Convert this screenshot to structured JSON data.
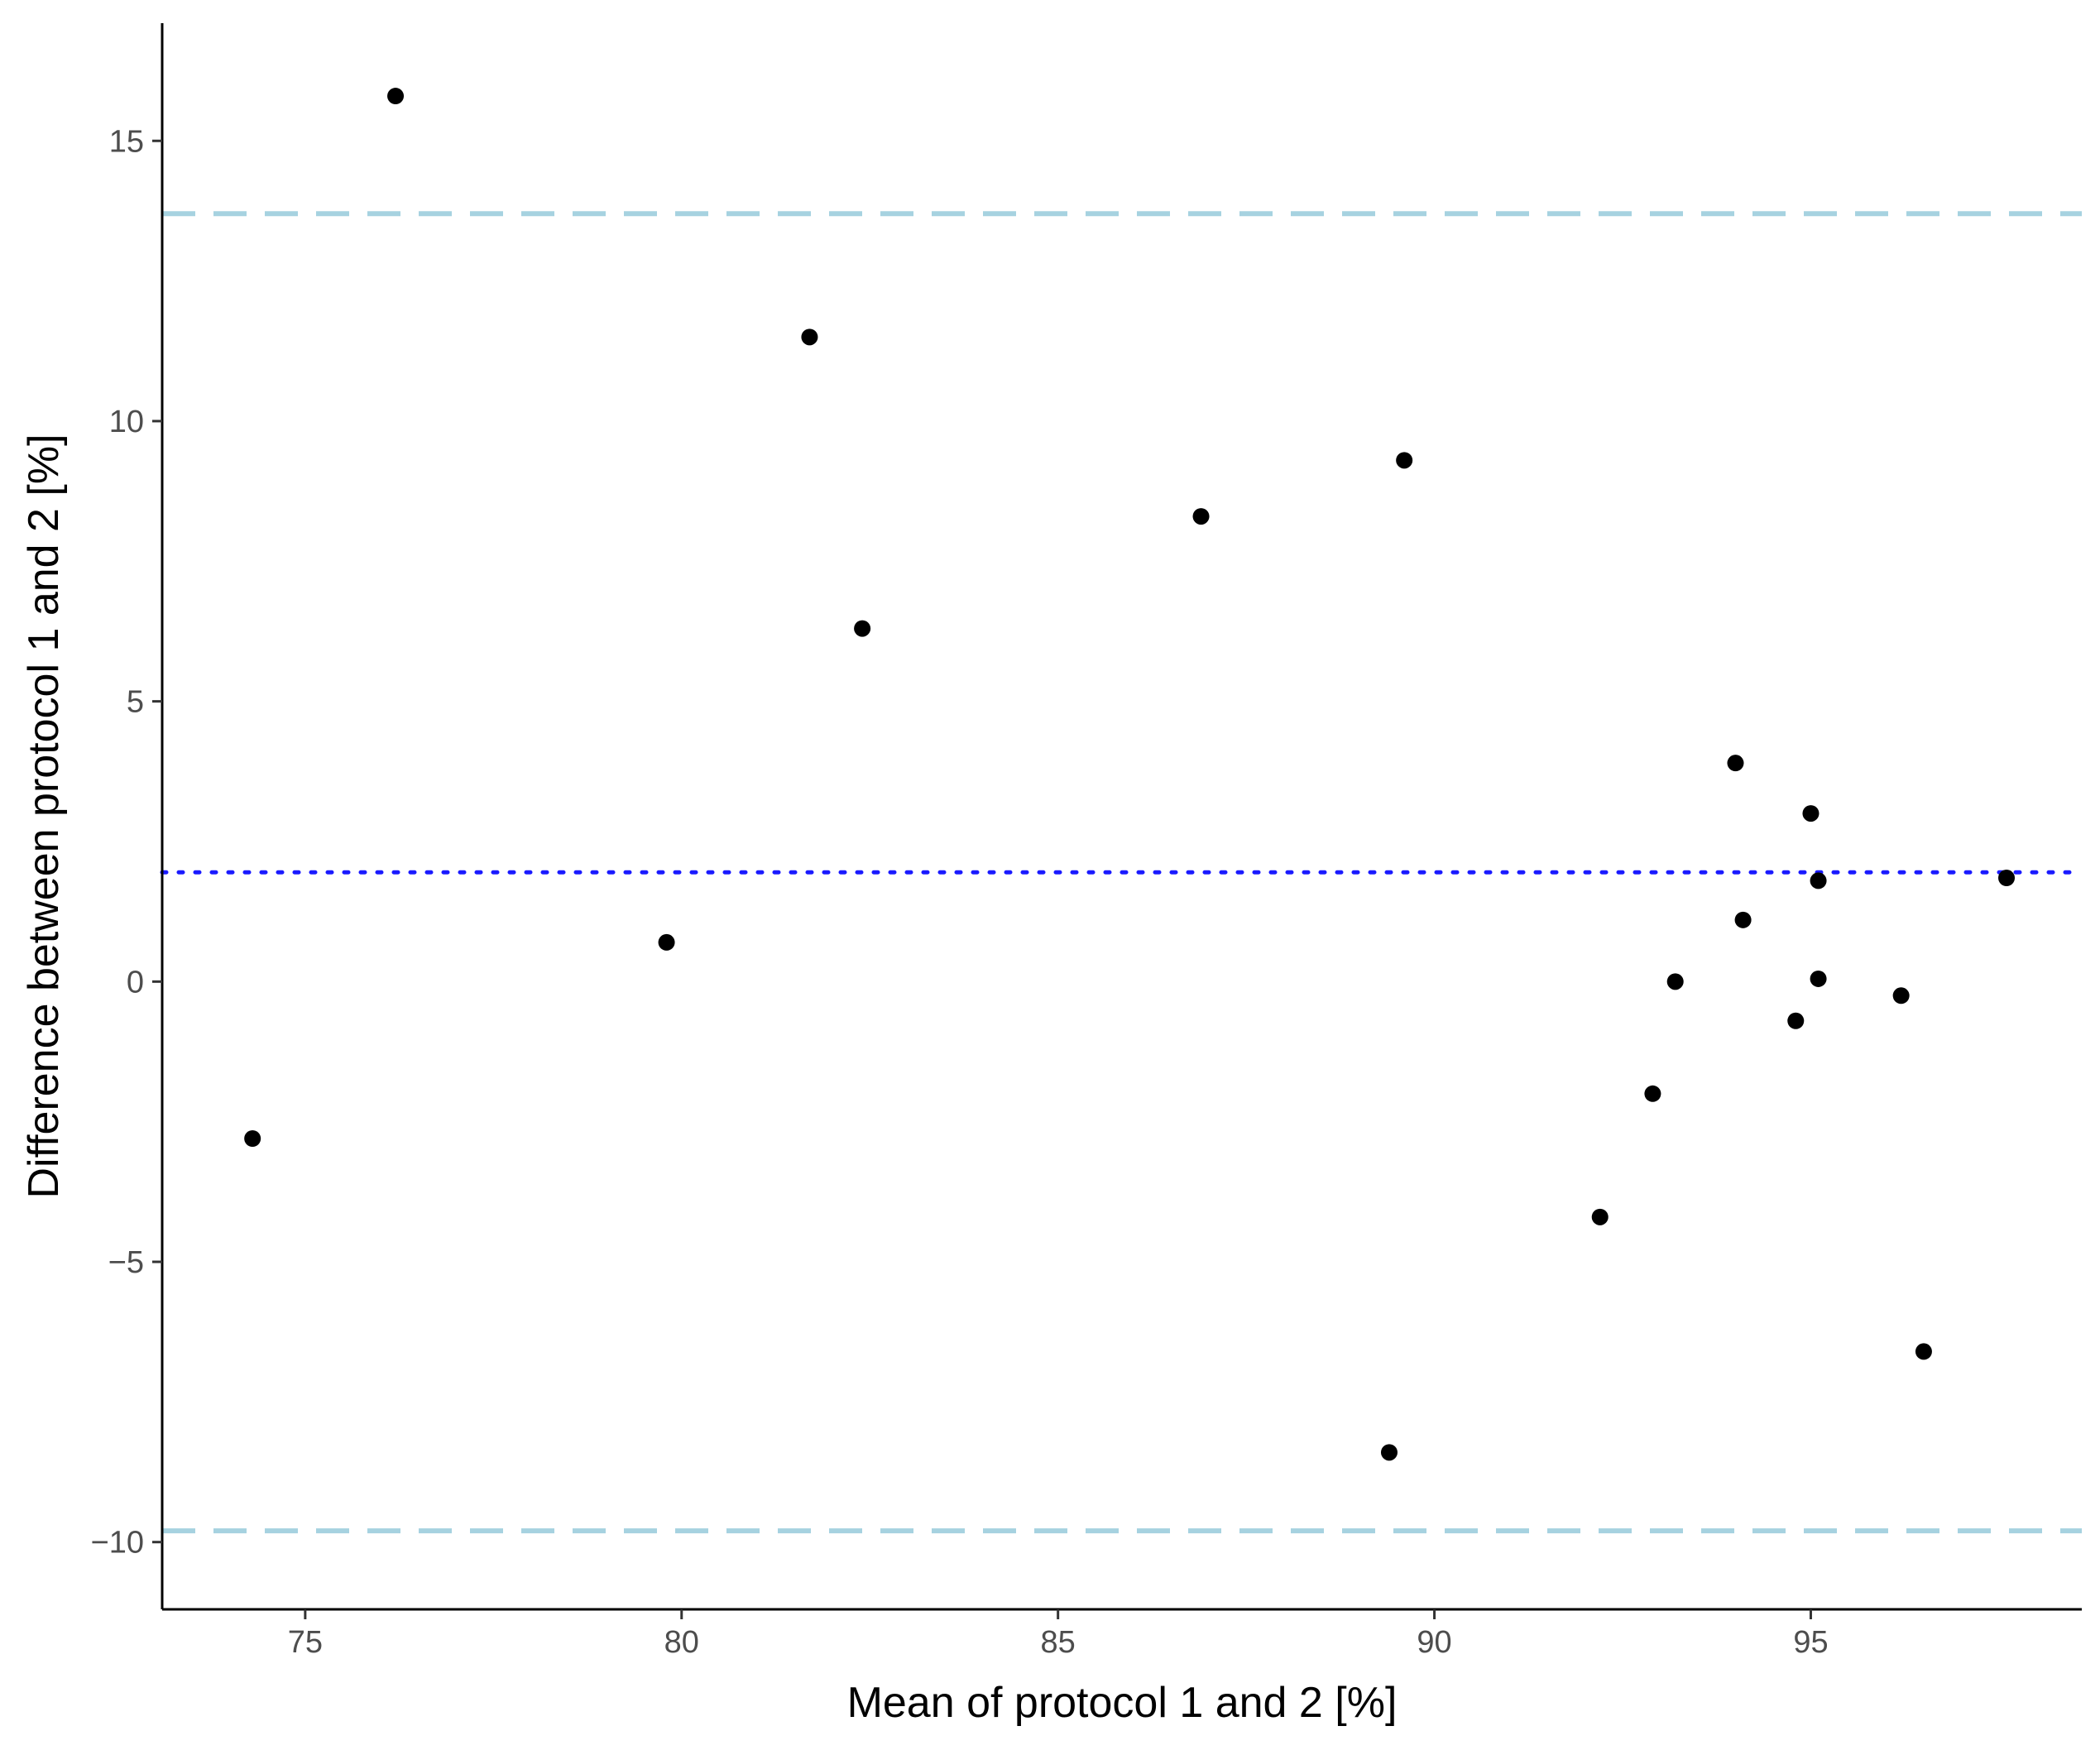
{
  "chart_data": {
    "type": "scatter",
    "title": "",
    "xlabel": "Mean of protocol 1 and 2 [%]",
    "ylabel": "Difference between protocol 1 and 2 [%]",
    "xlim": [
      73.1,
      98.6
    ],
    "ylim": [
      -11.2,
      17.1
    ],
    "x_ticks": [
      75,
      80,
      85,
      90,
      95
    ],
    "y_ticks": [
      -10,
      -5,
      0,
      5,
      10,
      15
    ],
    "x_tick_labels": [
      "75",
      "80",
      "85",
      "90",
      "95"
    ],
    "y_tick_labels": [
      "−10",
      "−5",
      "0",
      "5",
      "10",
      "15"
    ],
    "grid": false,
    "legend": "none",
    "points": [
      {
        "x": 74.3,
        "y": -2.8
      },
      {
        "x": 76.2,
        "y": 15.8
      },
      {
        "x": 79.8,
        "y": 0.7
      },
      {
        "x": 81.7,
        "y": 11.5
      },
      {
        "x": 82.4,
        "y": 6.3
      },
      {
        "x": 86.9,
        "y": 8.3
      },
      {
        "x": 89.4,
        "y": -8.4
      },
      {
        "x": 89.6,
        "y": 9.3
      },
      {
        "x": 92.2,
        "y": -4.2
      },
      {
        "x": 92.9,
        "y": -2.0
      },
      {
        "x": 93.2,
        "y": 0.0
      },
      {
        "x": 94.0,
        "y": 3.9
      },
      {
        "x": 94.1,
        "y": 1.1
      },
      {
        "x": 94.8,
        "y": -0.7
      },
      {
        "x": 95.0,
        "y": 3.0
      },
      {
        "x": 95.1,
        "y": 1.8
      },
      {
        "x": 95.1,
        "y": 0.05
      },
      {
        "x": 96.2,
        "y": -0.25
      },
      {
        "x": 96.5,
        "y": -6.6
      },
      {
        "x": 97.6,
        "y": 1.85
      }
    ],
    "reference_lines": [
      {
        "role": "upper limit of agreement",
        "y": 13.7,
        "style": "dashed",
        "color": "#a6d2e0"
      },
      {
        "role": "mean difference",
        "y": 1.95,
        "style": "dotted",
        "color": "#1a1aff"
      },
      {
        "role": "lower limit of agreement",
        "y": -9.8,
        "style": "dashed",
        "color": "#a6d2e0"
      }
    ],
    "point_color": "#000000",
    "axis_color": "#000000"
  }
}
